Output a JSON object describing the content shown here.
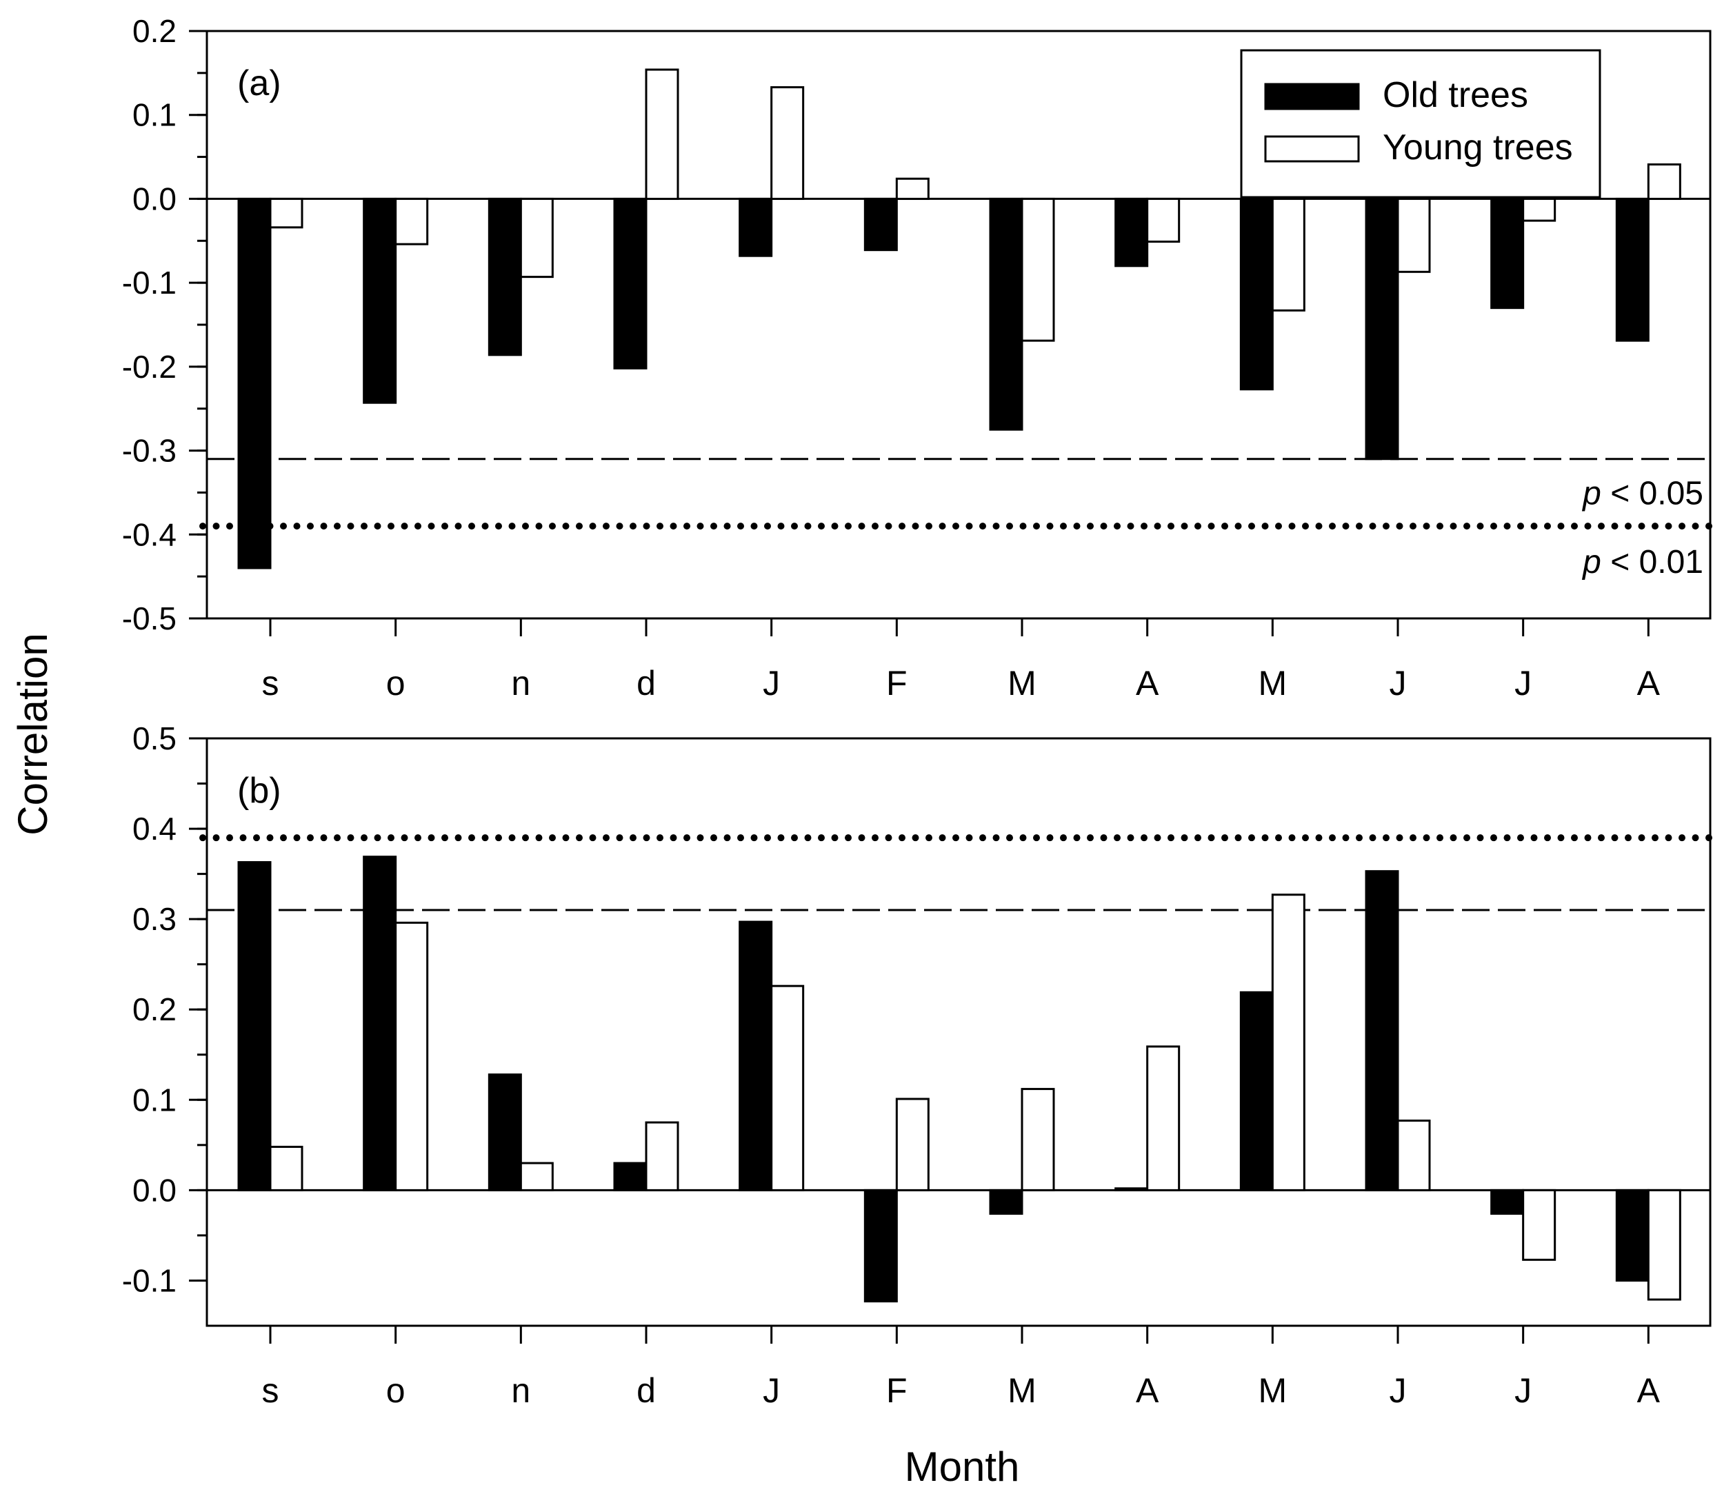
{
  "chart_data": {
    "type": "bar",
    "ylabel": "Correlation",
    "xlabel": "Month",
    "categories": [
      "s",
      "o",
      "n",
      "d",
      "J",
      "F",
      "M",
      "A",
      "M",
      "J",
      "J",
      "A"
    ],
    "legend": {
      "placement": "top-right",
      "entries": [
        {
          "name": "Old trees",
          "fill": "#000000"
        },
        {
          "name": "Young trees",
          "fill": "#ffffff"
        }
      ]
    },
    "panels": [
      {
        "tag": "(a)",
        "ylim": [
          -0.5,
          0.2
        ],
        "yticks": [
          "0.2",
          "0.1",
          "0.0",
          "-0.1",
          "-0.2",
          "-0.3",
          "-0.4",
          "-0.5"
        ],
        "ytick_values": [
          0.2,
          0.1,
          0.0,
          -0.1,
          -0.2,
          -0.3,
          -0.4,
          -0.5
        ],
        "series": [
          {
            "name": "Old trees",
            "values": [
              -0.44,
              -0.243,
              -0.186,
              -0.202,
              -0.068,
              -0.061,
              -0.275,
              -0.08,
              -0.227,
              -0.31,
              -0.13,
              -0.169
            ]
          },
          {
            "name": "Young trees",
            "values": [
              -0.034,
              -0.054,
              -0.093,
              0.154,
              0.133,
              0.024,
              -0.169,
              -0.051,
              -0.133,
              -0.087,
              -0.026,
              0.041
            ]
          }
        ],
        "thresholds": [
          {
            "value": -0.31,
            "style": "dashed",
            "label_prefix": "p",
            "label_suffix": " < 0.05"
          },
          {
            "value": -0.39,
            "style": "dotted",
            "label_prefix": "p",
            "label_suffix": " < 0.01"
          }
        ]
      },
      {
        "tag": "(b)",
        "ylim": [
          -0.15,
          0.5
        ],
        "yticks": [
          "0.5",
          "0.4",
          "0.3",
          "0.2",
          "0.1",
          "0.0",
          "-0.1"
        ],
        "ytick_values": [
          0.5,
          0.4,
          0.3,
          0.2,
          0.1,
          0.0,
          -0.1
        ],
        "series": [
          {
            "name": "Old trees",
            "values": [
              0.363,
              0.369,
              0.128,
              0.03,
              0.297,
              -0.123,
              -0.026,
              0.002,
              0.219,
              0.353,
              -0.026,
              -0.1
            ]
          },
          {
            "name": "Young trees",
            "values": [
              0.048,
              0.296,
              0.03,
              0.075,
              0.226,
              0.101,
              0.112,
              0.159,
              0.327,
              0.077,
              -0.077,
              -0.121
            ]
          }
        ],
        "thresholds": [
          {
            "value": 0.31,
            "style": "dashed"
          },
          {
            "value": 0.39,
            "style": "dotted"
          }
        ]
      }
    ]
  }
}
